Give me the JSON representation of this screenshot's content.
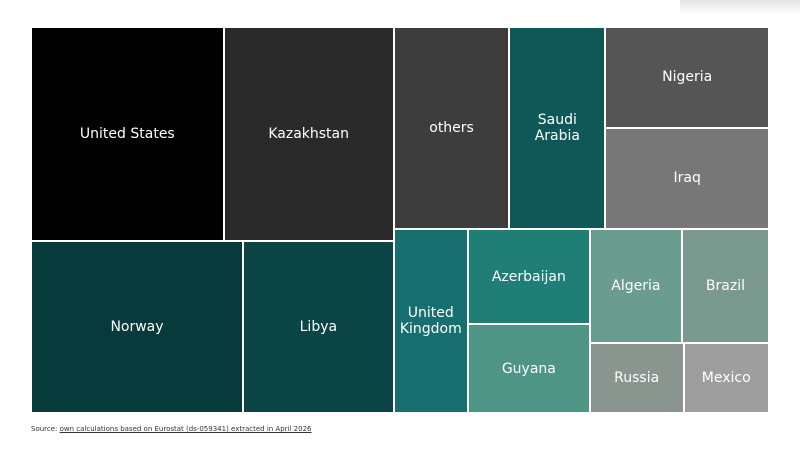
{
  "chart_data": {
    "type": "treemap",
    "categories": [
      "United States",
      "Kazakhstan",
      "Norway",
      "Libya",
      "others",
      "Saudi Arabia",
      "Nigeria",
      "Iraq",
      "United Kingdom",
      "Azerbaijan",
      "Guyana",
      "Algeria",
      "Brazil",
      "Russia",
      "Mexico"
    ],
    "values": [
      14.5,
      12.8,
      12.8,
      9.1,
      8.2,
      6.8,
      5.8,
      5.8,
      4.8,
      4.1,
      3.8,
      3.7,
      3.5,
      2.3,
      2.1
    ],
    "colors": [
      "#000000",
      "#2a2a2a",
      "#073a3a",
      "#0c4545",
      "#3d3d3d",
      "#105858",
      "#555555",
      "#777777",
      "#17706f",
      "#1f7e75",
      "#4e9585",
      "#6a9d90",
      "#7a9a8f",
      "#8a9590",
      "#9e9e9e"
    ],
    "source": {
      "label": "Source:",
      "link": "own calculations based on Eurostat (ds-059341) extracted in April 2026"
    }
  }
}
